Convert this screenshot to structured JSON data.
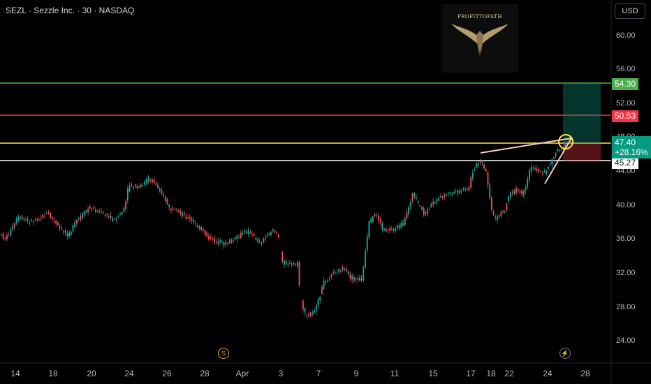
{
  "header": {
    "symbol_info": "SEZL · Sezzle Inc. · 30 · NASDAQ"
  },
  "currency_button": "USD",
  "logo": {
    "text": "PROFITTOPATH"
  },
  "price_axis": [
    "60.00",
    "56.00",
    "52.00",
    "48.00",
    "44.00",
    "40.00",
    "36.00",
    "32.00",
    "28.00",
    "24.00"
  ],
  "levels": {
    "target": {
      "value": "54.30",
      "color": "#4caf50"
    },
    "resistance": {
      "value": "50.53",
      "color": "#f23645"
    },
    "current": {
      "value": "47.40",
      "change": "+28.16%",
      "color": "#ffeb3b"
    },
    "support": {
      "value": "45.27",
      "color": "#ffffff"
    }
  },
  "time_axis": [
    "14",
    "18",
    "20",
    "24",
    "26",
    "28",
    "Apr",
    "3",
    "7",
    "9",
    "11",
    "15",
    "17",
    "18",
    "22",
    "24",
    "28"
  ],
  "events": {
    "split_icon": "S",
    "earnings_icon": "⚡"
  },
  "colors": {
    "up": "#26a69a",
    "down": "#ef5350",
    "background": "#000000"
  }
}
